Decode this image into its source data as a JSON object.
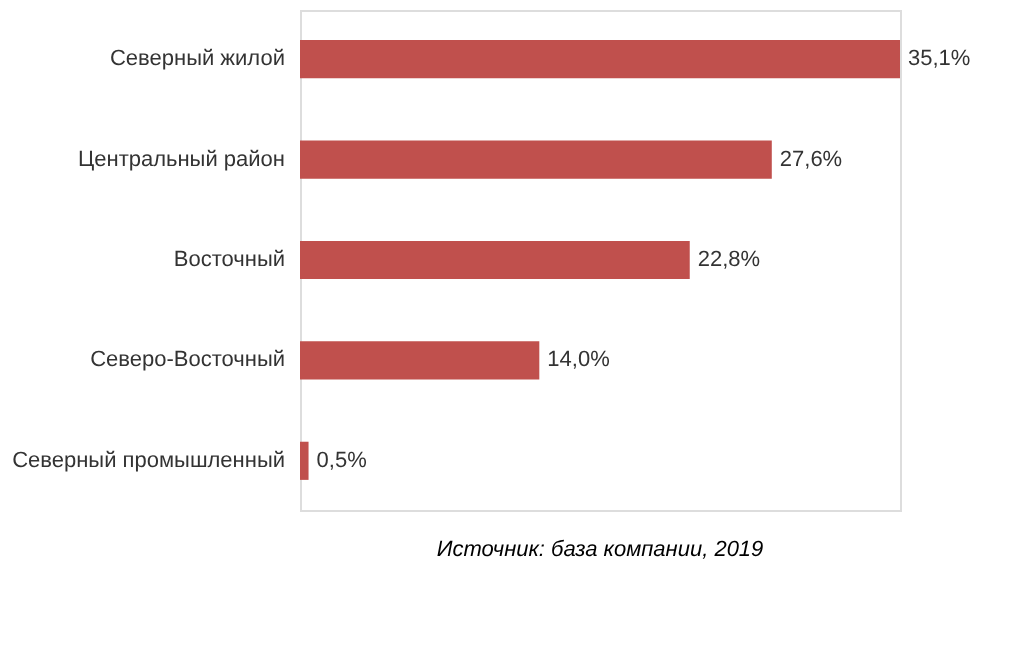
{
  "chart_data": {
    "type": "bar",
    "orientation": "horizontal",
    "categories": [
      "Северный жилой",
      "Центральный район",
      "Восточный",
      "Северо-Восточный",
      "Северный промышленный"
    ],
    "values": [
      35.1,
      27.6,
      22.8,
      14.0,
      0.5
    ],
    "value_labels": [
      "35,1%",
      "27,6%",
      "22,8%",
      "14,0%",
      "0,5%"
    ],
    "color": "#c0504d",
    "annotations": [
      "Источник: база компании, 2019"
    ]
  }
}
